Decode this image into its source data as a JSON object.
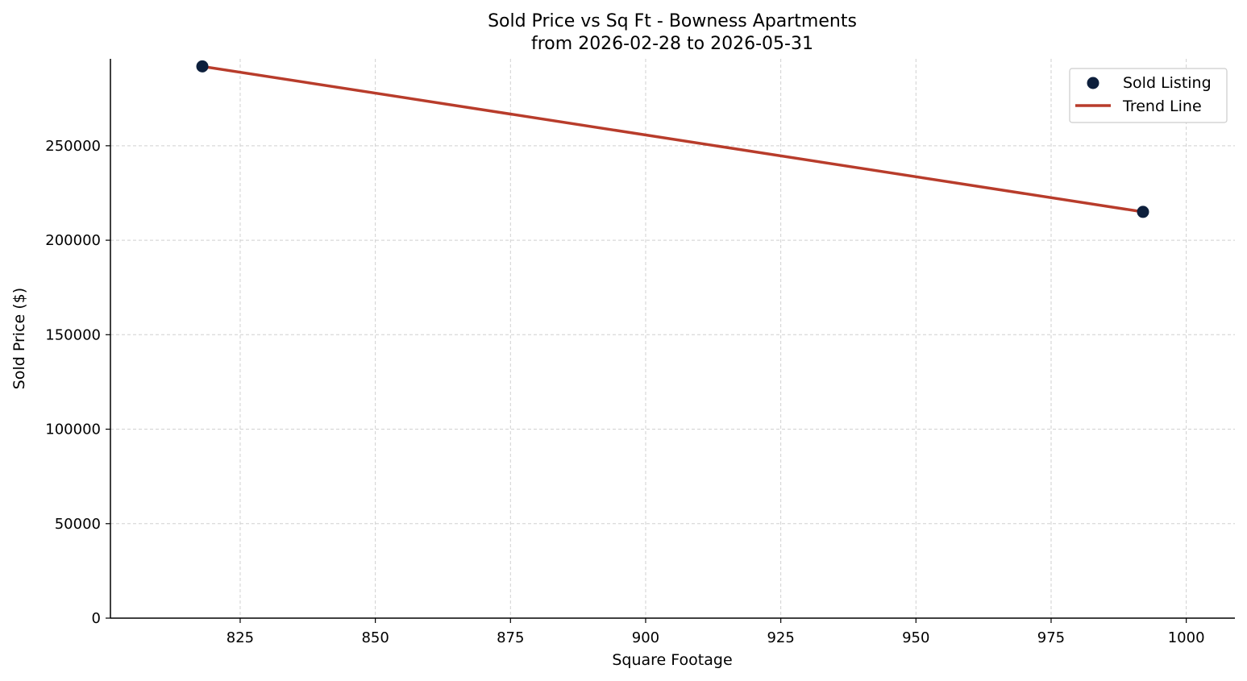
{
  "chart_data": {
    "type": "scatter",
    "title": "Sold Price vs Sq Ft - Bowness Apartments",
    "subtitle": "from 2026-02-28 to 2026-05-31",
    "xlabel": "Square Footage",
    "ylabel": "Sold Price ($)",
    "xlim": [
      801,
      1009
    ],
    "ylim": [
      0,
      296000
    ],
    "xticks": [
      825,
      850,
      875,
      900,
      925,
      950,
      975,
      1000
    ],
    "yticks": [
      0,
      50000,
      100000,
      150000,
      200000,
      250000
    ],
    "grid": true,
    "legend_position": "top-right",
    "series": [
      {
        "name": "Sold Listing",
        "kind": "scatter",
        "color": "#0d1f3c",
        "points": [
          {
            "x": 818,
            "y": 292000
          },
          {
            "x": 992,
            "y": 215000
          }
        ]
      },
      {
        "name": "Trend Line",
        "kind": "line",
        "color": "#b83c2b",
        "points": [
          {
            "x": 818,
            "y": 292000
          },
          {
            "x": 992,
            "y": 215000
          }
        ]
      }
    ]
  }
}
